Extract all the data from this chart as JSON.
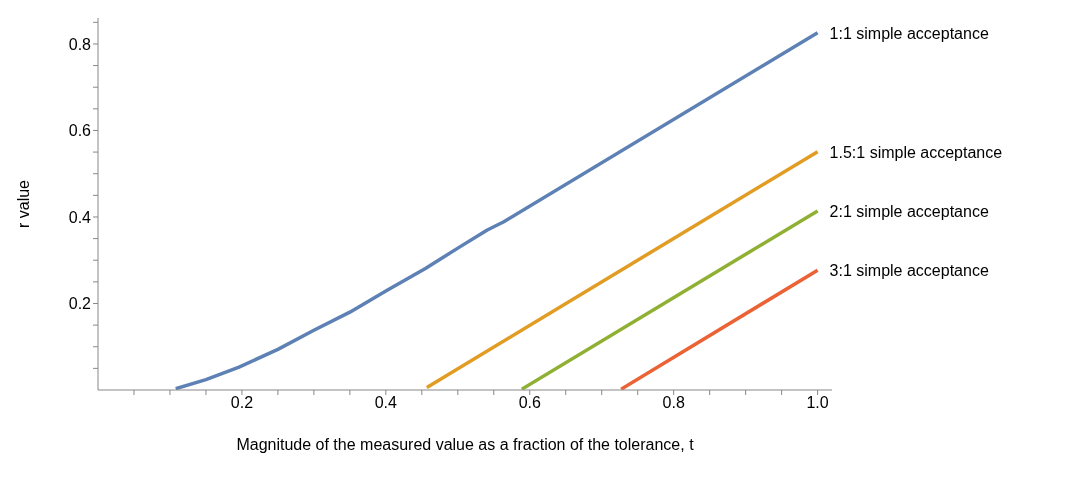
{
  "chart_data": {
    "type": "line",
    "xlabel": "Magnitude of the measured value as a fraction of the tolerance, t",
    "ylabel": "r value",
    "xlim": [
      0,
      1.02
    ],
    "ylim": [
      0,
      0.86
    ],
    "xticks": [
      {
        "value": 0.05,
        "label": null
      },
      {
        "value": 0.1,
        "label": null
      },
      {
        "value": 0.15,
        "label": null
      },
      0.2,
      {
        "value": 0.25,
        "label": null
      },
      {
        "value": 0.3,
        "label": null
      },
      {
        "value": 0.35,
        "label": null
      },
      0.4,
      {
        "value": 0.45,
        "label": null
      },
      {
        "value": 0.5,
        "label": null
      },
      {
        "value": 0.55,
        "label": null
      },
      0.6,
      {
        "value": 0.65,
        "label": null
      },
      {
        "value": 0.7,
        "label": null
      },
      {
        "value": 0.75,
        "label": null
      },
      0.8,
      {
        "value": 0.85,
        "label": null
      },
      {
        "value": 0.9,
        "label": null
      },
      {
        "value": 0.95,
        "label": null
      },
      {
        "value": 1,
        "label": "1.0"
      }
    ],
    "yticks": [
      {
        "value": 0.05,
        "label": null
      },
      {
        "value": 0.1,
        "label": null
      },
      {
        "value": 0.15,
        "label": null
      },
      0.2,
      {
        "value": 0.25,
        "label": null
      },
      {
        "value": 0.3,
        "label": null
      },
      {
        "value": 0.35,
        "label": null
      },
      0.4,
      {
        "value": 0.45,
        "label": null
      },
      {
        "value": 0.5,
        "label": null
      },
      {
        "value": 0.55,
        "label": null
      },
      0.6,
      {
        "value": 0.65,
        "label": null
      },
      {
        "value": 0.7,
        "label": null
      },
      {
        "value": 0.75,
        "label": null
      },
      0.8,
      {
        "value": 0.85,
        "label": null
      }
    ],
    "grid": false,
    "legend": false,
    "marker": "none",
    "line_style": "solid",
    "series": [
      {
        "name": "1:1 simple acceptance",
        "color": "#5e81b5",
        "x": [
          0.108,
          0.15,
          0.196,
          0.25,
          0.3,
          0.35,
          0.4,
          0.455,
          0.5,
          0.541,
          0.564,
          1.0
        ],
        "values": [
          0.003,
          0.024,
          0.053,
          0.094,
          0.138,
          0.18,
          0.229,
          0.281,
          0.328,
          0.37,
          0.389,
          0.826
        ]
      },
      {
        "name": "1.5:1 simple acceptance",
        "color": "#e19c24",
        "x": [
          0.457,
          1.0
        ],
        "values": [
          0.006,
          0.551
        ]
      },
      {
        "name": "2:1 simple acceptance",
        "color": "#8fb032",
        "x": [
          0.589,
          1.0
        ],
        "values": [
          0.002,
          0.414
        ]
      },
      {
        "name": "3:1 simple acceptance",
        "color": "#eb6235",
        "x": [
          0.727,
          1.0
        ],
        "values": [
          0.002,
          0.277
        ]
      }
    ]
  }
}
